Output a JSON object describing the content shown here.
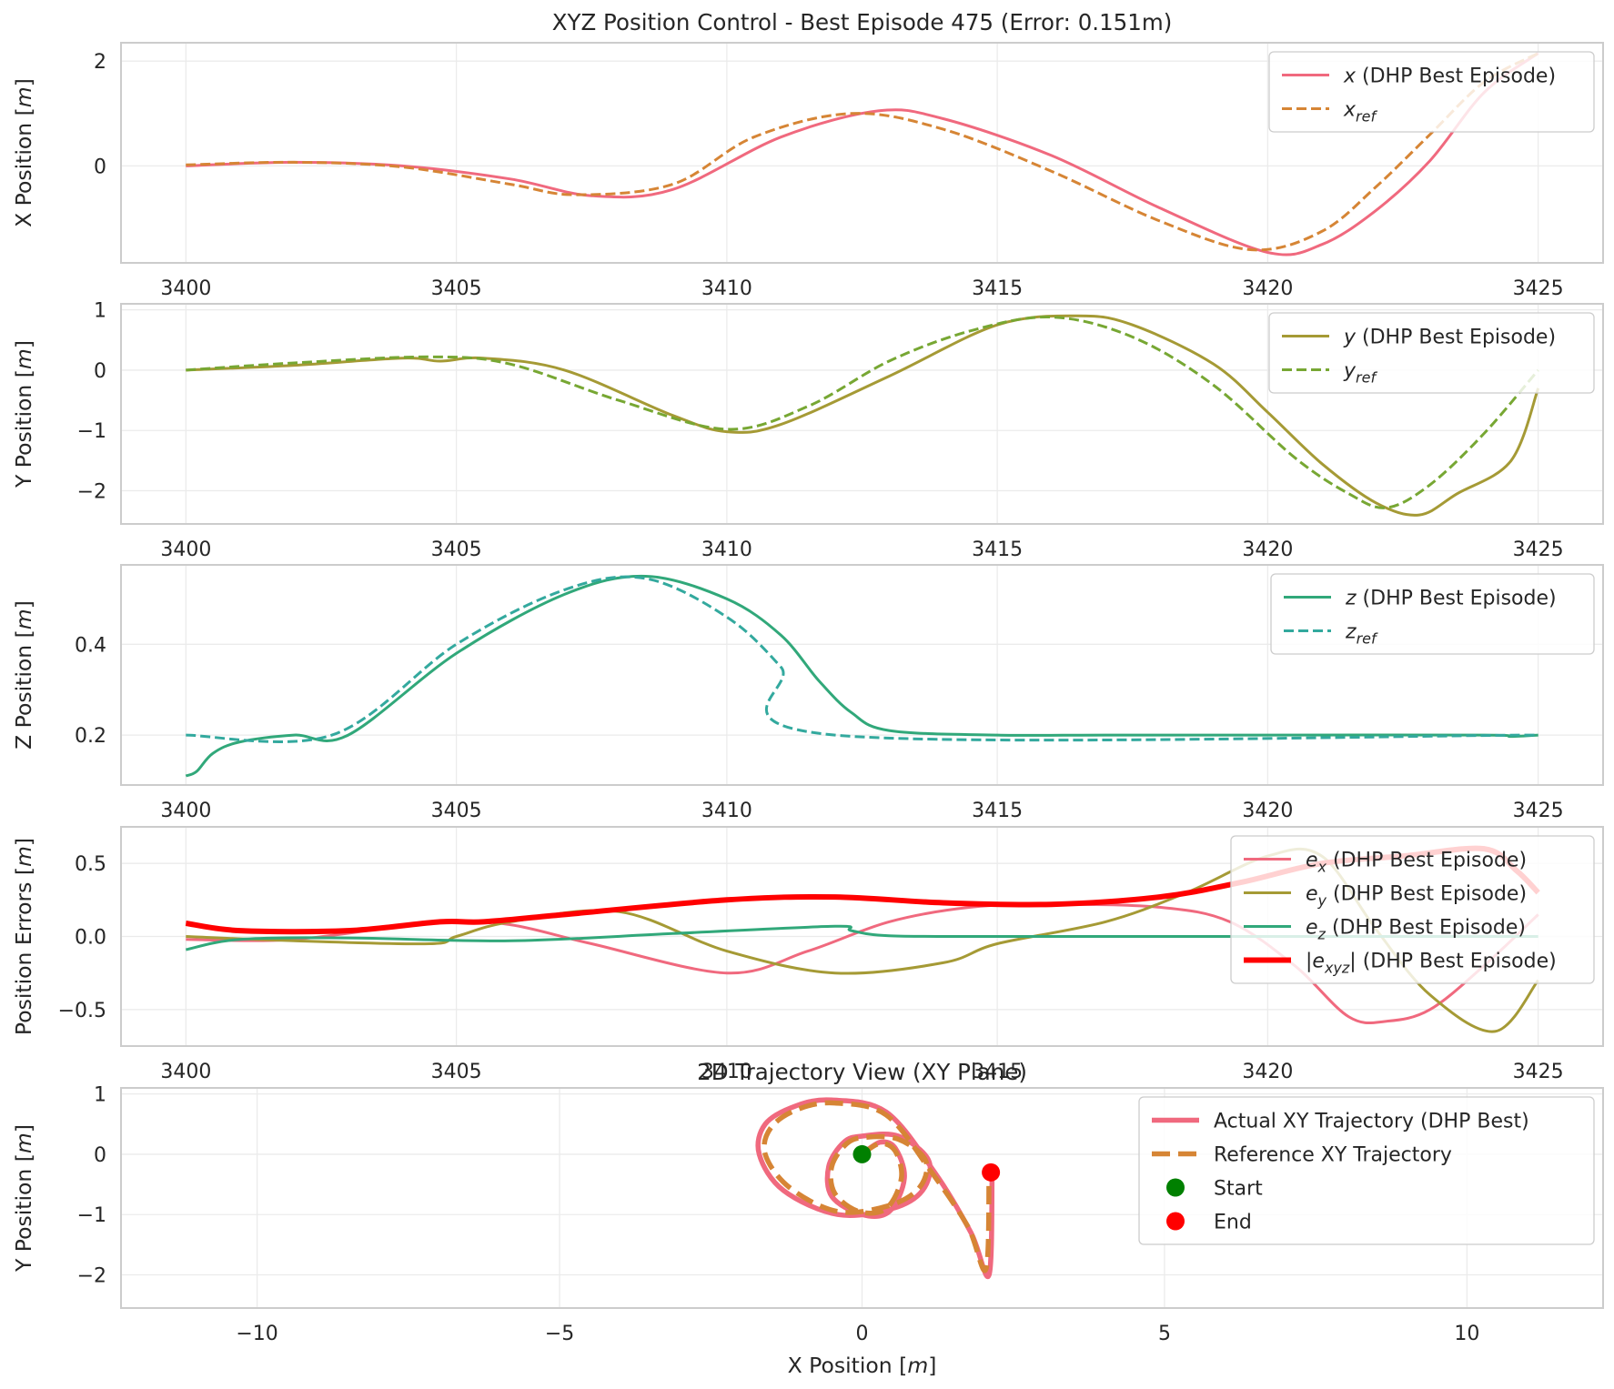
{
  "chart_data": [
    {
      "type": "line",
      "title": "XYZ Position Control - Best Episode 475 (Error: 0.151m)",
      "ylabel_main": "X Position [",
      "ylabel_unit": "m",
      "ylabel_close": "]",
      "xlim": [
        3398.8,
        3426.2
      ],
      "ylim": [
        -1.85,
        2.35
      ],
      "xticks": [
        3400,
        3405,
        3410,
        3415,
        3420,
        3425
      ],
      "yticks": [
        0,
        2
      ],
      "grid": true,
      "legend_position": "upper right",
      "series": [
        {
          "legend_base": "x",
          "legend_sub": "",
          "legend_suffix": " (DHP Best Episode)",
          "color": "#f0697e",
          "dash": "solid",
          "width": 3,
          "x": [
            3400,
            3402,
            3404,
            3406,
            3407.5,
            3409,
            3411,
            3412.8,
            3414,
            3416,
            3418,
            3420,
            3421,
            3422,
            3423,
            3424,
            3425
          ],
          "y": [
            0.0,
            0.07,
            0.0,
            -0.25,
            -0.57,
            -0.45,
            0.55,
            1.05,
            0.9,
            0.2,
            -0.8,
            -1.65,
            -1.5,
            -0.85,
            0.1,
            1.4,
            2.15
          ]
        },
        {
          "legend_base": "x",
          "legend_sub": "ref",
          "legend_suffix": "",
          "color": "#d68535",
          "dash": "dashed",
          "width": 3,
          "x": [
            3400,
            3402,
            3404,
            3406,
            3407.2,
            3409,
            3410.5,
            3412.3,
            3414,
            3416,
            3418,
            3419.7,
            3421,
            3422,
            3423,
            3424,
            3425
          ],
          "y": [
            0.02,
            0.07,
            -0.02,
            -0.35,
            -0.55,
            -0.35,
            0.55,
            1.0,
            0.7,
            -0.1,
            -1.05,
            -1.6,
            -1.25,
            -0.4,
            0.6,
            1.6,
            2.15
          ]
        }
      ]
    },
    {
      "type": "line",
      "title": "",
      "ylabel_main": "Y Position [",
      "ylabel_unit": "m",
      "ylabel_close": "]",
      "xlim": [
        3398.8,
        3426.2
      ],
      "ylim": [
        -2.55,
        1.1
      ],
      "xticks": [
        3400,
        3405,
        3410,
        3415,
        3420,
        3425
      ],
      "yticks": [
        -2,
        -1,
        0,
        1
      ],
      "grid": true,
      "legend_position": "upper right",
      "series": [
        {
          "legend_base": "y",
          "legend_sub": "",
          "legend_suffix": " (DHP Best Episode)",
          "color": "#a59a35",
          "dash": "solid",
          "width": 3,
          "x": [
            3400,
            3402,
            3404,
            3404.7,
            3405.5,
            3407,
            3409,
            3410,
            3411,
            3413,
            3415,
            3416.5,
            3417.5,
            3419,
            3420,
            3421,
            3422,
            3422.8,
            3423.5,
            3424.5,
            3425
          ],
          "y": [
            0.0,
            0.08,
            0.2,
            0.15,
            0.2,
            0.0,
            -0.75,
            -1.02,
            -0.9,
            -0.1,
            0.75,
            0.9,
            0.75,
            0.1,
            -0.7,
            -1.55,
            -2.2,
            -2.4,
            -2.05,
            -1.5,
            -0.3
          ]
        },
        {
          "legend_base": "y",
          "legend_sub": "ref",
          "legend_suffix": "",
          "color": "#77a733",
          "dash": "dashed",
          "width": 3,
          "x": [
            3400,
            3402,
            3404.5,
            3406,
            3408,
            3410,
            3411.5,
            3413,
            3414.5,
            3416,
            3417.5,
            3419,
            3420.5,
            3421.5,
            3422.2,
            3423,
            3424,
            3425
          ],
          "y": [
            0.0,
            0.12,
            0.22,
            0.1,
            -0.5,
            -0.98,
            -0.6,
            0.15,
            0.65,
            0.88,
            0.55,
            -0.25,
            -1.45,
            -2.05,
            -2.28,
            -1.9,
            -1.05,
            0.0
          ]
        }
      ]
    },
    {
      "type": "line",
      "title": "",
      "ylabel_main": "Z Position [",
      "ylabel_unit": "m",
      "ylabel_close": "]",
      "xlim": [
        3398.8,
        3426.2
      ],
      "ylim": [
        0.09,
        0.575
      ],
      "xticks": [
        3400,
        3405,
        3410,
        3415,
        3420,
        3425
      ],
      "yticks": [
        0.2,
        0.4
      ],
      "grid": true,
      "legend_position": "upper right",
      "series": [
        {
          "legend_base": "z",
          "legend_sub": "",
          "legend_suffix": " (DHP Best Episode)",
          "color": "#31a87a",
          "dash": "solid",
          "width": 3,
          "x": [
            3400,
            3400.2,
            3400.5,
            3401,
            3402,
            3403,
            3405,
            3407,
            3408.5,
            3410,
            3411,
            3411.7,
            3412.3,
            3413,
            3415,
            3417,
            3420,
            3424,
            3424.5,
            3425
          ],
          "y": [
            0.11,
            0.12,
            0.16,
            0.185,
            0.2,
            0.2,
            0.38,
            0.51,
            0.55,
            0.5,
            0.42,
            0.32,
            0.25,
            0.21,
            0.2,
            0.2,
            0.2,
            0.2,
            0.197,
            0.2
          ]
        },
        {
          "legend_base": "z",
          "legend_sub": "ref",
          "legend_suffix": "",
          "color": "#33a99e",
          "dash": "dashed",
          "width": 3,
          "x": [
            3400,
            3402.7,
            3405,
            3407,
            3408.5,
            3410,
            3411,
            3412,
            3425
          ],
          "y": [
            0.2,
            0.2,
            0.4,
            0.52,
            0.545,
            0.46,
            0.35,
            0.2,
            0.2
          ]
        }
      ]
    },
    {
      "type": "line",
      "title": "",
      "ylabel_main": "Position Errors [",
      "ylabel_unit": "m",
      "ylabel_close": "]",
      "xlim": [
        3398.8,
        3426.2
      ],
      "ylim": [
        -0.75,
        0.75
      ],
      "xticks": [
        3400,
        3405,
        3410,
        3415,
        3420,
        3425
      ],
      "yticks": [
        -0.5,
        0.0,
        0.5
      ],
      "grid": true,
      "legend_position": "upper right",
      "series": [
        {
          "legend_base": "e",
          "legend_sub": "x",
          "legend_suffix": " (DHP Best Episode)",
          "color": "#f0697e",
          "dash": "solid",
          "width": 3,
          "x": [
            3400,
            3402,
            3404.7,
            3406,
            3407.5,
            3410,
            3411.5,
            3413,
            3414.5,
            3416,
            3418,
            3419.3,
            3420.5,
            3421.5,
            3422.2,
            3423,
            3424,
            3425
          ],
          "y": [
            -0.02,
            -0.02,
            0.1,
            0.08,
            -0.05,
            -0.25,
            -0.1,
            0.1,
            0.2,
            0.22,
            0.2,
            0.1,
            -0.2,
            -0.55,
            -0.58,
            -0.5,
            -0.2,
            0.15
          ]
        },
        {
          "legend_base": "e",
          "legend_sub": "y",
          "legend_suffix": " (DHP Best Episode)",
          "color": "#a59a35",
          "dash": "solid",
          "width": 3,
          "x": [
            3400,
            3402,
            3404.5,
            3405,
            3406,
            3408,
            3410,
            3412,
            3414,
            3415,
            3417,
            3418.5,
            3420,
            3421,
            3422,
            3423,
            3424.2,
            3425
          ],
          "y": [
            0.0,
            -0.03,
            -0.05,
            0.0,
            0.1,
            0.17,
            -0.1,
            -0.25,
            -0.18,
            -0.05,
            0.1,
            0.3,
            0.55,
            0.55,
            0.05,
            -0.4,
            -0.65,
            -0.3
          ]
        },
        {
          "legend_base": "e",
          "legend_sub": "z",
          "legend_suffix": " (DHP Best Episode)",
          "color": "#31a87a",
          "dash": "solid",
          "width": 3,
          "x": [
            3400,
            3401,
            3403,
            3406,
            3409,
            3412,
            3412.3,
            3413,
            3415,
            3420,
            3425
          ],
          "y": [
            -0.09,
            -0.02,
            -0.01,
            -0.03,
            0.02,
            0.07,
            0.04,
            0.005,
            0.0,
            0.0,
            0.0
          ]
        },
        {
          "legend_base": "|e",
          "legend_sub": "xyz",
          "legend_suffix": "| (DHP Best Episode)",
          "color": "#ff0000",
          "dash": "solid",
          "width": 6,
          "x": [
            3400,
            3401,
            3403,
            3404.7,
            3405.5,
            3407,
            3410,
            3412,
            3414,
            3416,
            3418,
            3419.5,
            3421,
            3422.5,
            3424,
            3424.6,
            3425
          ],
          "y": [
            0.09,
            0.04,
            0.04,
            0.1,
            0.1,
            0.15,
            0.25,
            0.27,
            0.23,
            0.22,
            0.27,
            0.37,
            0.5,
            0.55,
            0.6,
            0.45,
            0.3
          ]
        }
      ]
    },
    {
      "type": "line",
      "title": "2D Trajectory View (XY Plane)",
      "xlabel_main": "X Position [",
      "xlabel_unit": "m",
      "xlabel_close": "]",
      "ylabel_main": "Y Position [",
      "ylabel_unit": "m",
      "ylabel_close": "]",
      "xlim": [
        -12.25,
        12.25
      ],
      "ylim": [
        -2.55,
        1.1
      ],
      "xticks": [
        -10,
        -5,
        0,
        5,
        10
      ],
      "yticks": [
        -2,
        -1,
        0,
        1
      ],
      "grid": true,
      "legend_position": "upper right",
      "series": [
        {
          "legend_base": "Actual XY Trajectory (DHP Best)",
          "legend_sub": "",
          "legend_suffix": "",
          "color": "#f0697e",
          "dash": "solid",
          "width": 5.5,
          "x": [
            0,
            0.3,
            0.55,
            0.7,
            0.45,
            0.0,
            -0.5,
            -0.55,
            -0.3,
            0.0,
            0.6,
            1.1,
            1.0,
            0.5,
            -0.4,
            -1.3,
            -1.7,
            -1.6,
            -1.1,
            -0.5,
            0.4,
            1.2,
            1.8,
            2.1,
            2.15
          ],
          "y": [
            0.0,
            0.2,
            0.1,
            -0.4,
            -0.95,
            -1.0,
            -0.7,
            -0.2,
            0.2,
            0.3,
            0.3,
            -0.1,
            -0.6,
            -0.9,
            -1.0,
            -0.6,
            0.0,
            0.5,
            0.8,
            0.9,
            0.7,
            -0.3,
            -1.3,
            -2.0,
            -0.3
          ]
        },
        {
          "legend_base": "Reference XY Trajectory",
          "legend_sub": "",
          "legend_suffix": "",
          "color": "#d68535",
          "dash": "dashed",
          "width": 5.5,
          "x": [
            0,
            0.3,
            0.55,
            0.65,
            0.4,
            -0.05,
            -0.45,
            -0.5,
            -0.25,
            0.05,
            0.6,
            1.05,
            0.95,
            0.45,
            -0.4,
            -1.2,
            -1.6,
            -1.5,
            -1.05,
            -0.45,
            0.4,
            1.15,
            1.75,
            2.05,
            2.1
          ],
          "y": [
            0.0,
            0.18,
            0.05,
            -0.4,
            -0.9,
            -0.95,
            -0.65,
            -0.2,
            0.18,
            0.28,
            0.25,
            -0.1,
            -0.55,
            -0.85,
            -0.95,
            -0.55,
            0.0,
            0.45,
            0.75,
            0.85,
            0.65,
            -0.3,
            -1.2,
            -1.9,
            -0.2
          ]
        }
      ],
      "points": [
        {
          "legend": "Start",
          "x": 0.0,
          "y": 0.0,
          "color": "#008000"
        },
        {
          "legend": "End",
          "x": 2.13,
          "y": -0.3,
          "color": "#ff0000"
        }
      ]
    }
  ]
}
